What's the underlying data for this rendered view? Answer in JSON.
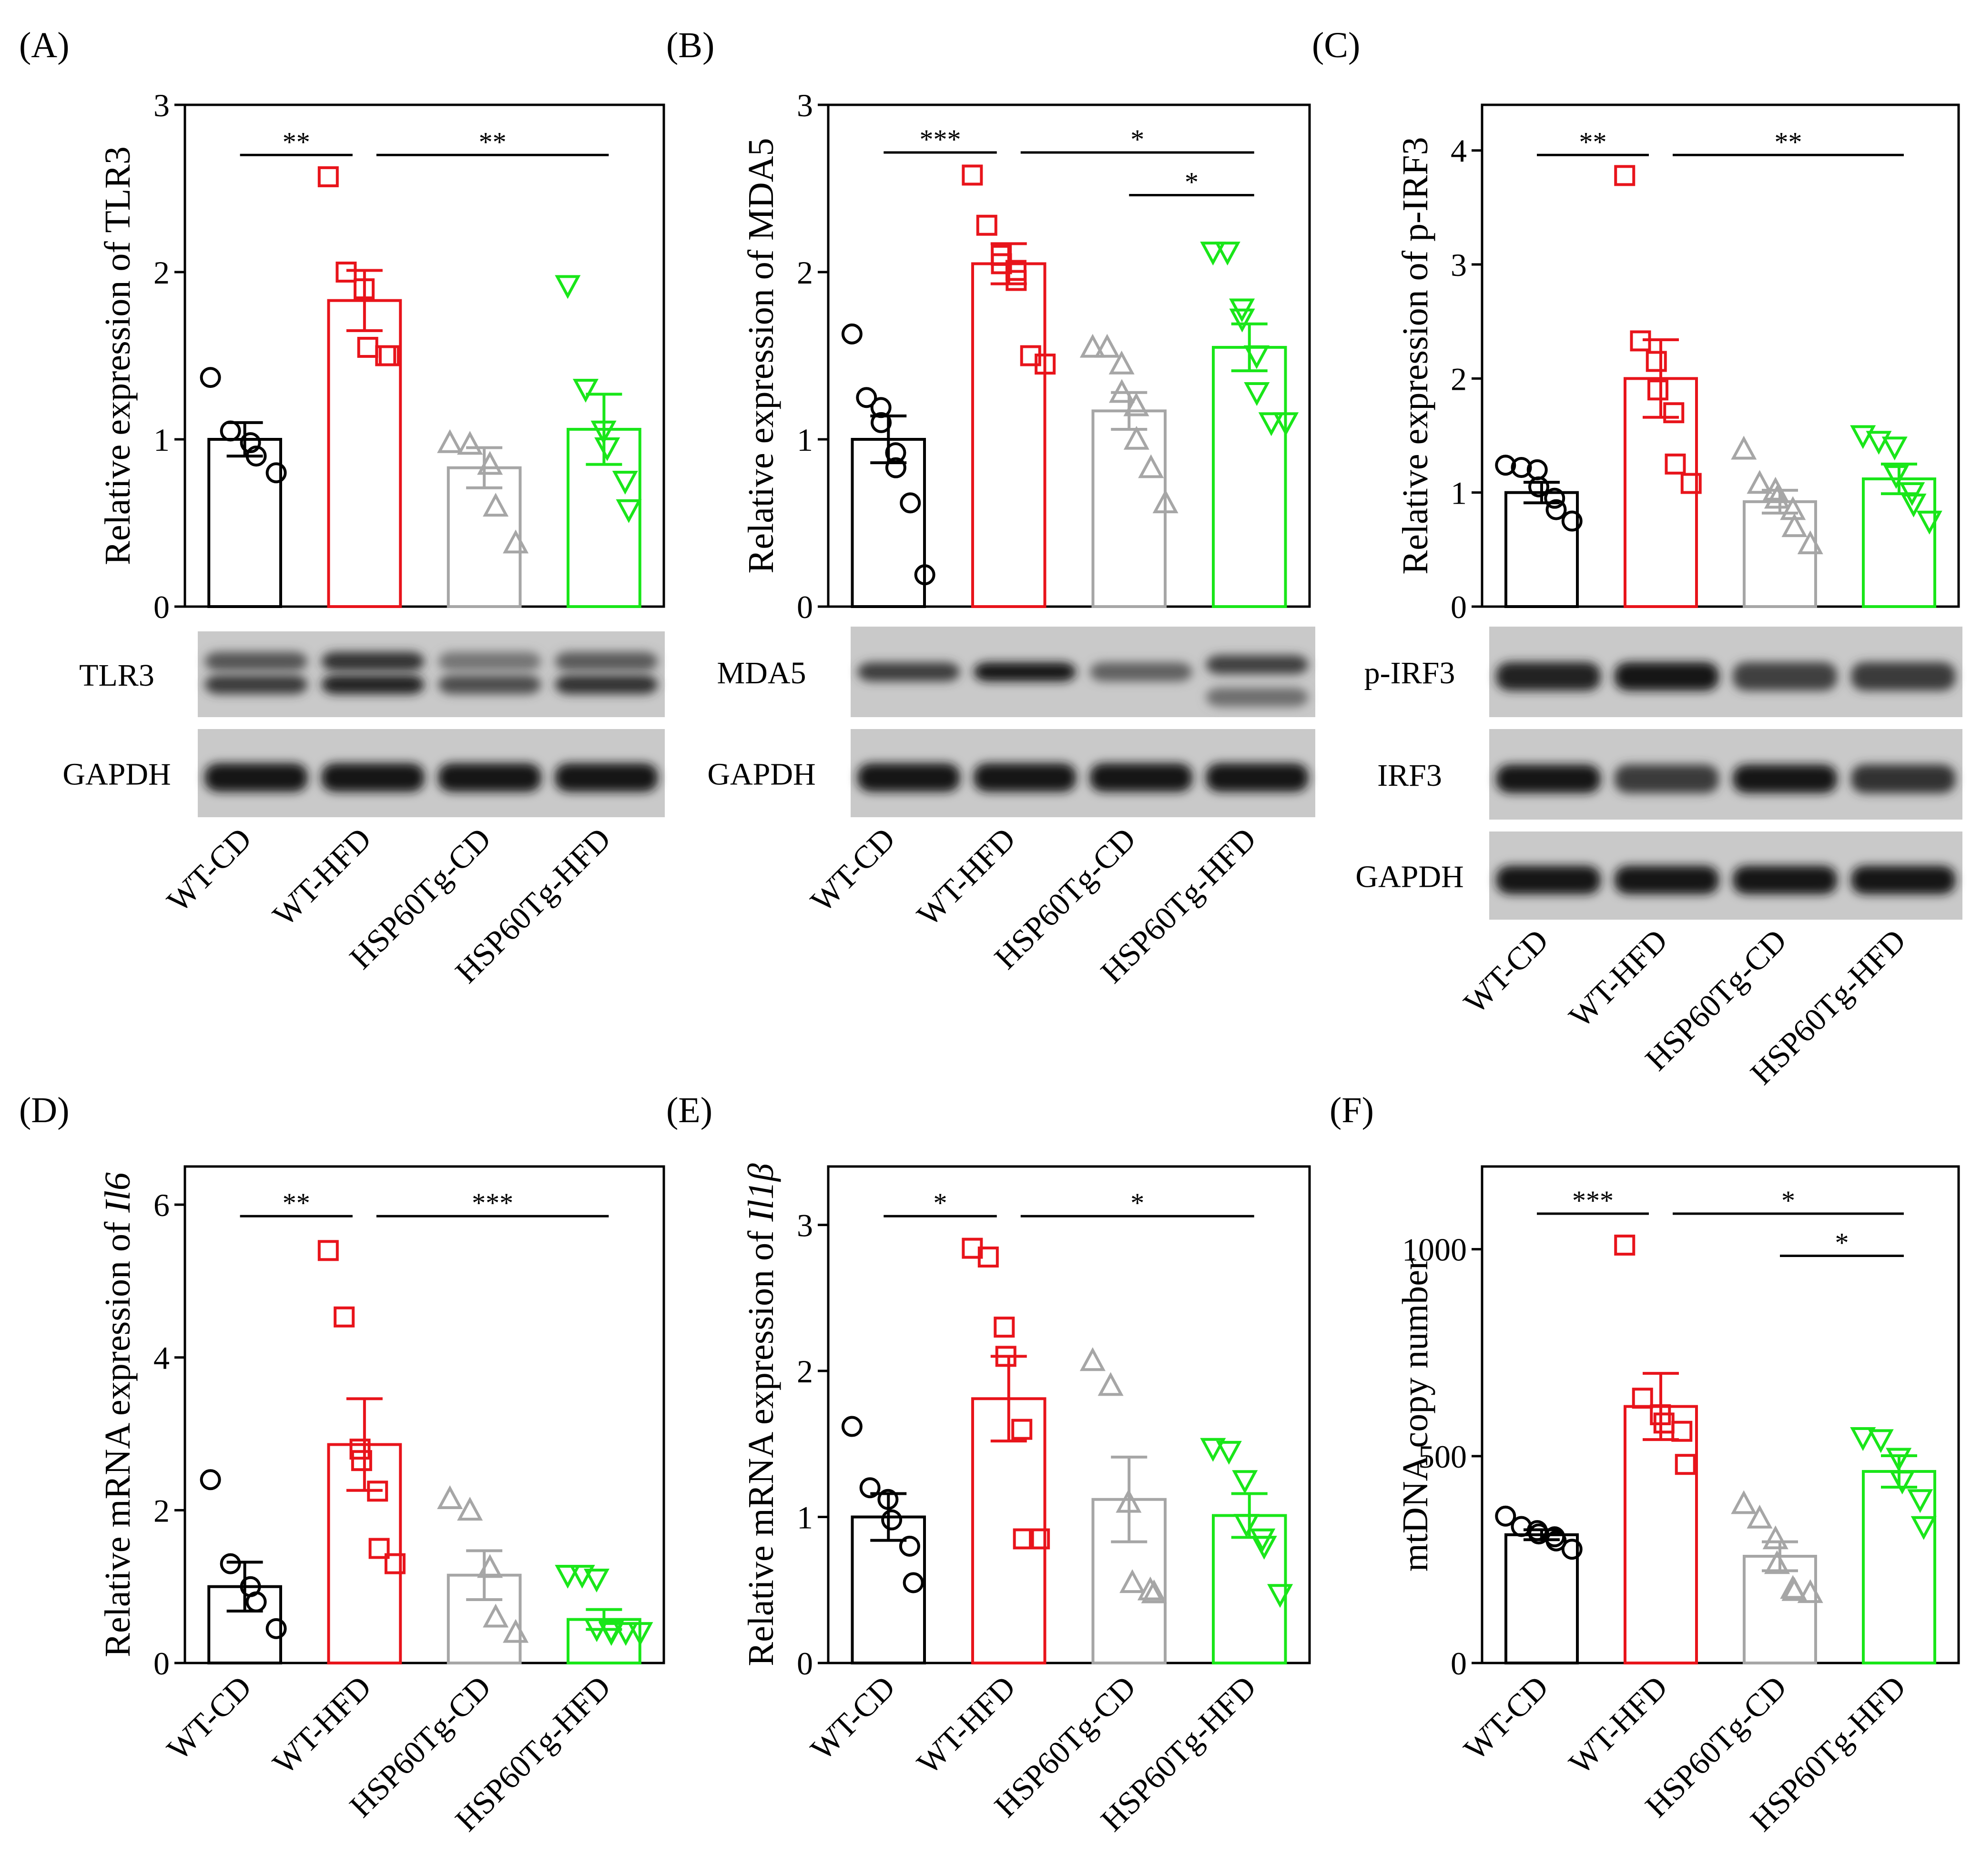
{
  "colors": {
    "WT-CD": "#000000",
    "WT-HFD": "#e8141b",
    "HSP60Tg-CD": "#a6a6a6",
    "HSP60Tg-HFD": "#19e619"
  },
  "groups": [
    "WT-CD",
    "WT-HFD",
    "HSP60Tg-CD",
    "HSP60Tg-HFD"
  ],
  "marker_icons": {
    "WT-CD": "circle-marker-icon",
    "WT-HFD": "square-marker-icon",
    "HSP60Tg-CD": "triangle-up-marker-icon",
    "HSP60Tg-HFD": "triangle-down-marker-icon"
  },
  "chart_data": [
    {
      "panel": "(A)",
      "type": "bar",
      "ylabel": "Relative expression of TLR3",
      "ylim": [
        0,
        3
      ],
      "yticks": [
        "0",
        "1",
        "2",
        "3"
      ],
      "categories": [
        "WT-CD",
        "WT-HFD",
        "HSP60Tg-CD",
        "HSP60Tg-HFD"
      ],
      "values": [
        1.0,
        1.83,
        0.83,
        1.06
      ],
      "sem": [
        0.1,
        0.18,
        0.12,
        0.21
      ],
      "points": [
        [
          1.37,
          1.05,
          0.98,
          0.9,
          0.8
        ],
        [
          2.57,
          2.0,
          1.9,
          1.55,
          1.5,
          1.5
        ],
        [
          0.98,
          0.97,
          0.85,
          0.6,
          0.38
        ],
        [
          1.92,
          1.3,
          1.05,
          0.95,
          0.75,
          0.58
        ]
      ],
      "significance": [
        {
          "from": 0,
          "to": 1,
          "label": "**",
          "level": 1
        },
        {
          "from": 1,
          "to": 3,
          "label": "**",
          "level": 1
        }
      ],
      "blots": [
        {
          "label": "TLR3"
        },
        {
          "label": "GAPDH"
        }
      ]
    },
    {
      "panel": "(B)",
      "type": "bar",
      "ylabel": "Relative expression of MDA5",
      "ylim": [
        0,
        3
      ],
      "yticks": [
        "0",
        "1",
        "2",
        "3"
      ],
      "categories": [
        "WT-CD",
        "WT-HFD",
        "HSP60Tg-CD",
        "HSP60Tg-HFD"
      ],
      "values": [
        1.0,
        2.05,
        1.17,
        1.55
      ],
      "sem": [
        0.14,
        0.12,
        0.11,
        0.14
      ],
      "points": [
        [
          1.63,
          1.25,
          1.19,
          1.1,
          0.92,
          0.83,
          0.62,
          0.19
        ],
        [
          2.58,
          2.28,
          2.1,
          2.05,
          2.01,
          1.95,
          1.5,
          1.45
        ],
        [
          1.55,
          1.55,
          1.45,
          1.28,
          1.2,
          1.0,
          0.83,
          0.62
        ],
        [
          2.12,
          2.12,
          1.78,
          1.72,
          1.5,
          1.28,
          1.1,
          1.1
        ]
      ],
      "significance": [
        {
          "from": 0,
          "to": 1,
          "label": "***",
          "level": 1
        },
        {
          "from": 1,
          "to": 3,
          "label": "*",
          "level": 1
        },
        {
          "from": 2,
          "to": 3,
          "label": "*",
          "level": 2
        }
      ],
      "blots": [
        {
          "label": "MDA5"
        },
        {
          "label": "GAPDH"
        }
      ]
    },
    {
      "panel": "(C)",
      "type": "bar",
      "ylabel": "Relative expression of p-IRF3",
      "ylim": [
        0,
        4.4
      ],
      "yticks": [
        "0",
        "1",
        "2",
        "3",
        "4"
      ],
      "categories": [
        "WT-CD",
        "WT-HFD",
        "HSP60Tg-CD",
        "HSP60Tg-HFD"
      ],
      "values": [
        1.0,
        2.0,
        0.92,
        1.12
      ],
      "sem": [
        0.09,
        0.34,
        0.1,
        0.13
      ],
      "points": [
        [
          1.24,
          1.22,
          1.2,
          1.05,
          0.95,
          0.85,
          0.75
        ],
        [
          3.78,
          2.33,
          2.15,
          1.9,
          1.7,
          1.25,
          1.08
        ],
        [
          1.38,
          1.08,
          1.02,
          0.95,
          0.85,
          0.7,
          0.55
        ],
        [
          1.5,
          1.45,
          1.4,
          1.15,
          1.0,
          0.9,
          0.75
        ]
      ],
      "significance": [
        {
          "from": 0,
          "to": 1,
          "label": "**",
          "level": 1
        },
        {
          "from": 1,
          "to": 3,
          "label": "**",
          "level": 1
        }
      ],
      "blots": [
        {
          "label": "p-IRF3"
        },
        {
          "label": "IRF3"
        },
        {
          "label": "GAPDH"
        }
      ]
    },
    {
      "panel": "(D)",
      "type": "bar",
      "ylabel_prefix": "Relative mRNA expression of ",
      "ylabel_gene": "Il6",
      "ylim": [
        0,
        6.5
      ],
      "yticks": [
        "0",
        "2",
        "4",
        "6"
      ],
      "categories": [
        "WT-CD",
        "WT-HFD",
        "HSP60Tg-CD",
        "HSP60Tg-HFD"
      ],
      "values": [
        1.0,
        2.86,
        1.15,
        0.57
      ],
      "sem": [
        0.32,
        0.6,
        0.32,
        0.13
      ],
      "points": [
        [
          2.4,
          1.3,
          1.0,
          0.8,
          0.45
        ],
        [
          5.4,
          4.53,
          2.8,
          2.65,
          2.25,
          1.5,
          1.3
        ],
        [
          2.15,
          2.0,
          1.25,
          0.6,
          0.4
        ],
        [
          1.15,
          1.15,
          1.1,
          0.45,
          0.42,
          0.4,
          0.4,
          0.4
        ]
      ],
      "significance": [
        {
          "from": 0,
          "to": 1,
          "label": "**",
          "level": 1
        },
        {
          "from": 1,
          "to": 3,
          "label": "***",
          "level": 1
        }
      ],
      "blots": []
    },
    {
      "panel": "(E)",
      "type": "bar",
      "ylabel_prefix": "Relative mRNA expression of ",
      "ylabel_gene": "Il1β",
      "ylim": [
        0,
        3.4
      ],
      "yticks": [
        "0",
        "1",
        "2",
        "3"
      ],
      "categories": [
        "WT-CD",
        "WT-HFD",
        "HSP60Tg-CD",
        "HSP60Tg-HFD"
      ],
      "values": [
        1.0,
        1.81,
        1.12,
        1.01
      ],
      "sem": [
        0.16,
        0.29,
        0.29,
        0.15
      ],
      "points": [
        [
          1.62,
          1.2,
          1.12,
          0.98,
          0.8,
          0.55
        ],
        [
          2.84,
          2.78,
          2.3,
          2.1,
          1.6,
          0.85,
          0.85
        ],
        [
          2.07,
          1.9,
          1.1,
          0.55,
          0.5,
          0.48
        ],
        [
          1.47,
          1.45,
          1.25,
          0.95,
          0.85,
          0.8,
          0.47
        ]
      ],
      "significance": [
        {
          "from": 0,
          "to": 1,
          "label": "*",
          "level": 1
        },
        {
          "from": 1,
          "to": 3,
          "label": "*",
          "level": 1
        }
      ],
      "blots": []
    },
    {
      "panel": "(F)",
      "type": "bar",
      "ylabel": "mtDNA copy number",
      "ylim": [
        0,
        1200
      ],
      "yticks": [
        "0",
        "500",
        "1000"
      ],
      "categories": [
        "WT-CD",
        "WT-HFD",
        "HSP60Tg-CD",
        "HSP60Tg-HFD"
      ],
      "values": [
        310,
        620,
        258,
        463
      ],
      "sem": [
        12,
        80,
        35,
        38
      ],
      "points": [
        [
          355,
          330,
          320,
          312,
          305,
          295,
          275
        ],
        [
          1010,
          640,
          600,
          580,
          560,
          480
        ],
        [
          385,
          350,
          300,
          240,
          180,
          175,
          170
        ],
        [
          545,
          540,
          495,
          440,
          395,
          330
        ]
      ],
      "significance": [
        {
          "from": 0,
          "to": 1,
          "label": "***",
          "level": 1
        },
        {
          "from": 1,
          "to": 3,
          "label": "*",
          "level": 1
        },
        {
          "from": 2,
          "to": 3,
          "label": "*",
          "level": 2
        }
      ],
      "blots": []
    }
  ]
}
